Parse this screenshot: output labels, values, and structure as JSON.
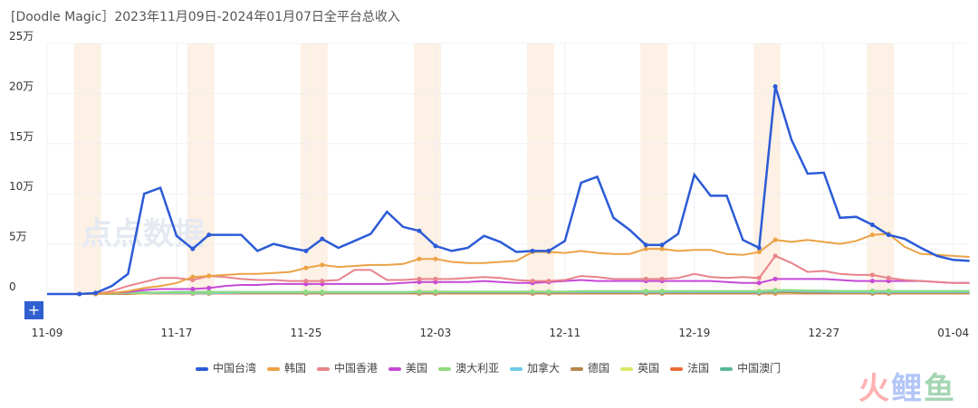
{
  "title": "[Doodle Magic］2023年11月09日-2024年01月07日全平台总收入",
  "zoom_button": "+",
  "watermark_chart": "点点数据",
  "watermark_logo": "火鲤鱼",
  "chart_data": {
    "type": "line",
    "ylim": [
      0,
      250000
    ],
    "yticks": [
      {
        "v": 0,
        "label": "0"
      },
      {
        "v": 50000,
        "label": "5万"
      },
      {
        "v": 100000,
        "label": "10万"
      },
      {
        "v": 150000,
        "label": "15万"
      },
      {
        "v": 200000,
        "label": "20万"
      },
      {
        "v": 250000,
        "label": "25万"
      }
    ],
    "start_date": "2023-11-09",
    "xtick_labels": [
      "11-09",
      "11-17",
      "11-25",
      "12-03",
      "12-11",
      "12-19",
      "12-27",
      "01-04"
    ],
    "weekend_shading": true,
    "legend_position": "bottom",
    "series": [
      {
        "name": "中国台湾",
        "color": "#2c5bd6",
        "values": [
          0,
          0,
          0,
          0.1,
          0.8,
          2,
          10,
          10.6,
          5.8,
          4.5,
          5.9,
          5.9,
          5.9,
          4.3,
          5,
          4.6,
          4.3,
          5.5,
          4.6,
          5.3,
          6,
          8.2,
          6.7,
          6.3,
          4.8,
          4.3,
          4.6,
          5.8,
          5.2,
          4.2,
          4.3,
          4.3,
          5.3,
          11.1,
          11.7,
          7.6,
          6.4,
          4.9,
          4.9,
          6,
          11.9,
          9.8,
          9.8,
          5.4,
          4.6,
          20.7,
          15.4,
          12,
          12.1,
          7.6,
          7.7,
          6.9,
          5.9,
          5.5,
          4.6,
          3.8,
          3.4,
          3.3
        ]
      },
      {
        "name": "韩国",
        "color": "#eba245",
        "values": [
          0,
          0,
          0,
          0,
          0.1,
          0.3,
          0.6,
          0.8,
          1.1,
          1.7,
          1.8,
          1.9,
          2,
          2,
          2.1,
          2.2,
          2.6,
          2.9,
          2.7,
          2.8,
          2.9,
          2.9,
          3,
          3.5,
          3.5,
          3.2,
          3.1,
          3.1,
          3.2,
          3.3,
          4.2,
          4.2,
          4.1,
          4.3,
          4.1,
          4,
          4,
          4.5,
          4.5,
          4.3,
          4.4,
          4.4,
          4,
          3.9,
          4.2,
          5.4,
          5.2,
          5.4,
          5.2,
          5,
          5.3,
          5.9,
          6,
          4.7,
          4,
          3.9,
          3.8,
          3.7
        ]
      },
      {
        "name": "中国香港",
        "color": "#e8838b",
        "values": [
          0,
          0,
          0,
          0,
          0.3,
          0.8,
          1.2,
          1.6,
          1.6,
          1.4,
          1.8,
          1.7,
          1.5,
          1.4,
          1.4,
          1.3,
          1.3,
          1.3,
          1.4,
          2.4,
          2.4,
          1.4,
          1.4,
          1.5,
          1.5,
          1.5,
          1.6,
          1.7,
          1.6,
          1.4,
          1.3,
          1.3,
          1.4,
          1.8,
          1.7,
          1.5,
          1.5,
          1.5,
          1.5,
          1.6,
          2,
          1.7,
          1.6,
          1.7,
          1.6,
          3.8,
          3.1,
          2.2,
          2.3,
          2,
          1.9,
          1.9,
          1.6,
          1.4,
          1.3,
          1.2,
          1.1,
          1.1
        ]
      },
      {
        "name": "美国",
        "color": "#c549d6",
        "values": [
          0,
          0,
          0,
          0,
          0.1,
          0.2,
          0.4,
          0.5,
          0.5,
          0.5,
          0.6,
          0.8,
          0.9,
          0.9,
          1,
          1,
          1,
          1,
          1,
          1,
          1,
          1,
          1.1,
          1.2,
          1.2,
          1.2,
          1.2,
          1.3,
          1.2,
          1.1,
          1.1,
          1.2,
          1.3,
          1.4,
          1.3,
          1.3,
          1.3,
          1.3,
          1.3,
          1.3,
          1.3,
          1.3,
          1.2,
          1.1,
          1.1,
          1.5,
          1.5,
          1.5,
          1.5,
          1.4,
          1.3,
          1.3,
          1.3,
          1.3,
          1.3,
          1.2,
          1.1,
          1.1
        ]
      },
      {
        "name": "澳大利亚",
        "color": "#8fdc7e",
        "values": [
          0,
          0,
          0,
          0,
          0.05,
          0.1,
          0.1,
          0.15,
          0.15,
          0.15,
          0.15,
          0.2,
          0.2,
          0.2,
          0.2,
          0.2,
          0.2,
          0.2,
          0.2,
          0.2,
          0.2,
          0.2,
          0.2,
          0.25,
          0.25,
          0.25,
          0.25,
          0.25,
          0.25,
          0.25,
          0.25,
          0.25,
          0.25,
          0.3,
          0.3,
          0.3,
          0.3,
          0.3,
          0.3,
          0.3,
          0.3,
          0.3,
          0.3,
          0.3,
          0.3,
          0.4,
          0.4,
          0.35,
          0.35,
          0.3,
          0.3,
          0.3,
          0.3,
          0.3,
          0.3,
          0.3,
          0.3,
          0.3
        ]
      },
      {
        "name": "加拿大",
        "color": "#6dcbe6",
        "values": [
          0,
          0,
          0,
          0,
          0.05,
          0.1,
          0.1,
          0.1,
          0.1,
          0.1,
          0.1,
          0.1,
          0.15,
          0.15,
          0.15,
          0.15,
          0.15,
          0.15,
          0.15,
          0.15,
          0.15,
          0.15,
          0.15,
          0.2,
          0.2,
          0.2,
          0.2,
          0.2,
          0.2,
          0.2,
          0.2,
          0.2,
          0.2,
          0.2,
          0.2,
          0.2,
          0.2,
          0.2,
          0.2,
          0.2,
          0.2,
          0.2,
          0.2,
          0.2,
          0.2,
          0.3,
          0.3,
          0.25,
          0.25,
          0.2,
          0.2,
          0.2,
          0.2,
          0.2,
          0.2,
          0.2,
          0.2,
          0.2
        ]
      },
      {
        "name": "德国",
        "color": "#b5864a",
        "values": [
          0,
          0,
          0,
          0,
          0,
          0.05,
          0.1,
          0.1,
          0.1,
          0.1,
          0.1,
          0.1,
          0.1,
          0.1,
          0.1,
          0.1,
          0.1,
          0.1,
          0.1,
          0.1,
          0.1,
          0.1,
          0.1,
          0.1,
          0.1,
          0.1,
          0.1,
          0.1,
          0.1,
          0.1,
          0.1,
          0.1,
          0.1,
          0.1,
          0.1,
          0.1,
          0.1,
          0.1,
          0.1,
          0.1,
          0.1,
          0.1,
          0.1,
          0.1,
          0.1,
          0.15,
          0.15,
          0.1,
          0.1,
          0.1,
          0.1,
          0.1,
          0.1,
          0.1,
          0.1,
          0.1,
          0.1,
          0.1
        ]
      },
      {
        "name": "英国",
        "color": "#dbe66a",
        "values": [
          0,
          0,
          0,
          0,
          0,
          0.05,
          0.05,
          0.1,
          0.1,
          0.1,
          0.1,
          0.1,
          0.1,
          0.1,
          0.1,
          0.1,
          0.1,
          0.1,
          0.1,
          0.1,
          0.1,
          0.1,
          0.1,
          0.1,
          0.1,
          0.1,
          0.1,
          0.1,
          0.1,
          0.1,
          0.1,
          0.1,
          0.1,
          0.1,
          0.1,
          0.1,
          0.1,
          0.1,
          0.1,
          0.1,
          0.1,
          0.1,
          0.1,
          0.1,
          0.1,
          0.1,
          0.1,
          0.1,
          0.1,
          0.1,
          0.1,
          0.1,
          0.1,
          0.1,
          0.1,
          0.1,
          0.1,
          0.1
        ]
      },
      {
        "name": "法国",
        "color": "#ea6b34",
        "values": [
          0,
          0,
          0,
          0,
          0,
          0,
          0.05,
          0.05,
          0.05,
          0.05,
          0.05,
          0.05,
          0.05,
          0.05,
          0.05,
          0.05,
          0.05,
          0.05,
          0.05,
          0.05,
          0.05,
          0.05,
          0.05,
          0.05,
          0.05,
          0.05,
          0.05,
          0.05,
          0.05,
          0.05,
          0.05,
          0.05,
          0.05,
          0.05,
          0.05,
          0.05,
          0.05,
          0.05,
          0.05,
          0.05,
          0.05,
          0.05,
          0.05,
          0.05,
          0.05,
          0.05,
          0.05,
          0.05,
          0.05,
          0.05,
          0.05,
          0.05,
          0.05,
          0.05,
          0.05,
          0.05,
          0.05,
          0.05
        ]
      },
      {
        "name": "中国澳门",
        "color": "#5ab89a",
        "values": [
          0,
          0,
          0,
          0,
          0.05,
          0.1,
          0.15,
          0.15,
          0.2,
          0.2,
          0.2,
          0.2,
          0.2,
          0.2,
          0.2,
          0.2,
          0.2,
          0.2,
          0.2,
          0.2,
          0.2,
          0.2,
          0.2,
          0.2,
          0.2,
          0.2,
          0.2,
          0.2,
          0.2,
          0.2,
          0.2,
          0.2,
          0.2,
          0.25,
          0.25,
          0.25,
          0.25,
          0.25,
          0.25,
          0.25,
          0.25,
          0.25,
          0.25,
          0.25,
          0.25,
          0.3,
          0.3,
          0.3,
          0.3,
          0.3,
          0.3,
          0.3,
          0.3,
          0.3,
          0.3,
          0.3,
          0.3,
          0.3
        ]
      }
    ],
    "value_unit": "万"
  }
}
